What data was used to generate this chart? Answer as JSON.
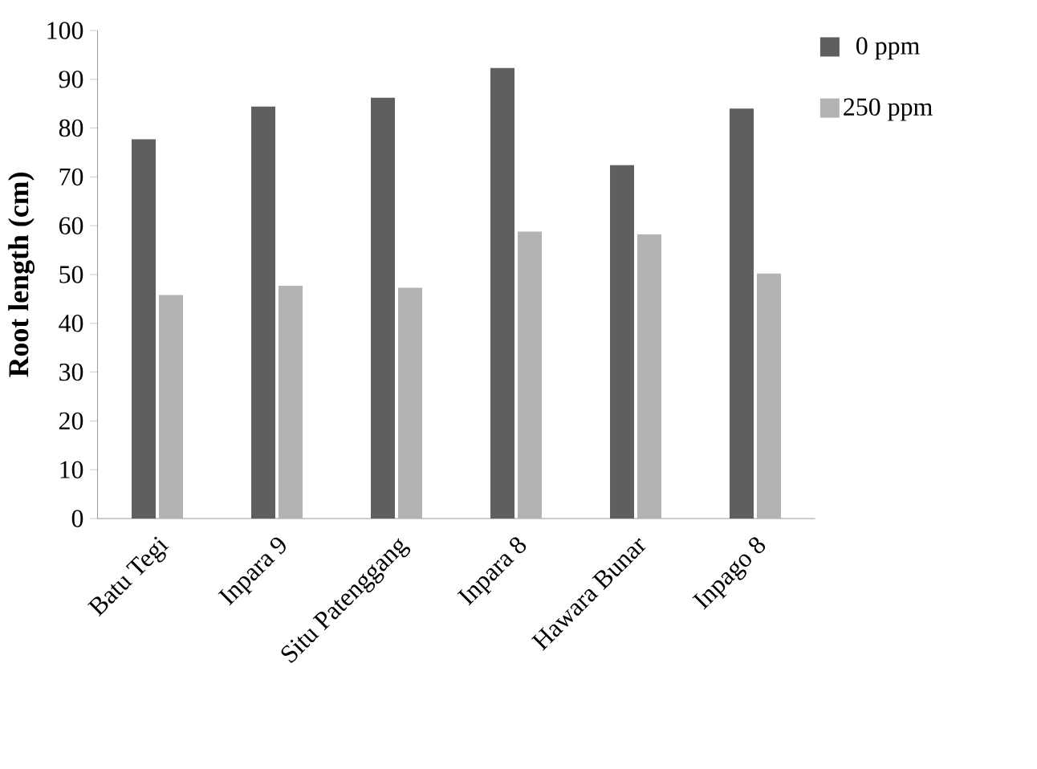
{
  "chart_data": {
    "type": "bar",
    "ylabel": "Root length  (cm)",
    "categories": [
      "Batu Tegi",
      "Inpara 9",
      "Situ Patenggang",
      "Inpara 8",
      "Hawara Bunar",
      "Inpago 8"
    ],
    "series": [
      {
        "name": "0 ppm",
        "color": "#5f5f5f",
        "values": [
          77.7,
          84.4,
          86.2,
          92.3,
          72.4,
          84.0
        ]
      },
      {
        "name": "250 ppm",
        "color": "#b3b3b3",
        "values": [
          45.8,
          47.7,
          47.3,
          58.8,
          58.2,
          50.2
        ]
      }
    ],
    "ylim": [
      0,
      100
    ],
    "yticks": [
      0,
      10,
      20,
      30,
      40,
      50,
      60,
      70,
      80,
      90,
      100
    ],
    "grid": false,
    "legend": "top right"
  }
}
